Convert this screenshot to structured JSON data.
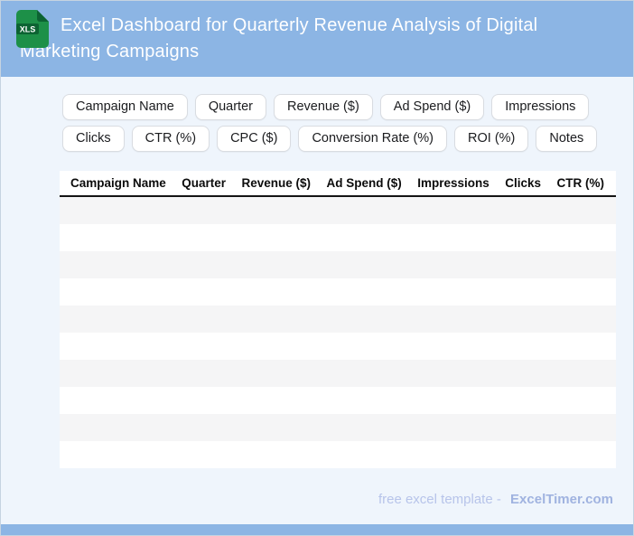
{
  "header": {
    "title": "Excel Dashboard for Quarterly Revenue Analysis of Digital Marketing Campaigns",
    "file_icon_label": "XLS",
    "colors": {
      "bg": "#8cb5e4",
      "text": "#ffffff",
      "icon_green": "#1d9048",
      "icon_dark_green": "#0c6332"
    }
  },
  "chips": [
    "Campaign Name",
    "Quarter",
    "Revenue ($)",
    "Ad Spend ($)",
    "Impressions",
    "Clicks",
    "CTR (%)",
    "CPC ($)",
    "Conversion Rate (%)",
    "ROI (%)",
    "Notes"
  ],
  "table": {
    "headers": [
      "Campaign Name",
      "Quarter",
      "Revenue ($)",
      "Ad Spend ($)",
      "Impressions",
      "Clicks",
      "CTR (%)"
    ],
    "empty_row_count": 10,
    "stripe_color": "#f5f5f6"
  },
  "footer": {
    "text": "free excel template -",
    "brand": "ExcelTimer.com"
  },
  "colors": {
    "body_bg": "#eff5fc",
    "bottom_bar": "#8cb5e4",
    "header_rule": "#141414"
  }
}
